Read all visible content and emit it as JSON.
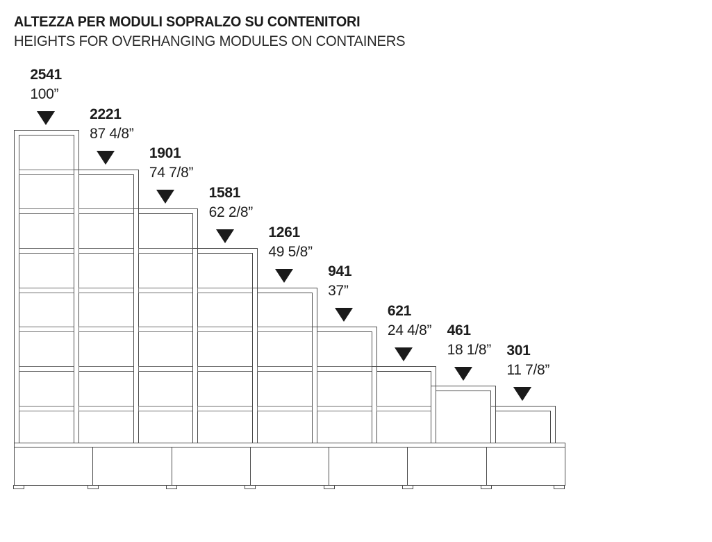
{
  "title": {
    "italian": "ALTEZZA PER MODULI SOPRALZO SU CONTENITORI",
    "english": "HEIGHTS FOR OVERHANGING MODULES ON CONTAINERS"
  },
  "diagram": {
    "description": "Stepped front elevation of nine overhanging shelving modules of decreasing height standing on a continuous row of base containers; each module is annotated with its height in millimetres and inches above a filled down-pointing triangle marker",
    "marker": "down-triangle-icon",
    "units": [
      {
        "height_mm": 2541,
        "label_mm": "2541",
        "label_in": "100”",
        "shelves_mm": [
          2221,
          1901,
          1581,
          1261,
          941,
          621,
          301
        ]
      },
      {
        "height_mm": 2221,
        "label_mm": "2221",
        "label_in": "87 4/8”",
        "shelves_mm": [
          1901,
          1581,
          1261,
          941,
          621,
          301
        ]
      },
      {
        "height_mm": 1901,
        "label_mm": "1901",
        "label_in": "74 7/8”",
        "shelves_mm": [
          1581,
          1261,
          941,
          621,
          301
        ]
      },
      {
        "height_mm": 1581,
        "label_mm": "1581",
        "label_in": "62 2/8”",
        "shelves_mm": [
          1261,
          941,
          621,
          301
        ]
      },
      {
        "height_mm": 1261,
        "label_mm": "1261",
        "label_in": "49 5/8”",
        "shelves_mm": [
          941,
          621,
          301
        ]
      },
      {
        "height_mm": 941,
        "label_mm": "941",
        "label_in": "37”",
        "shelves_mm": [
          621,
          301
        ]
      },
      {
        "height_mm": 621,
        "label_mm": "621",
        "label_in": "24 4/8”",
        "shelves_mm": [
          301
        ]
      },
      {
        "height_mm": 461,
        "label_mm": "461",
        "label_in": "18 1/8”",
        "shelves_mm": []
      },
      {
        "height_mm": 301,
        "label_mm": "301",
        "label_in": "11 7/8”",
        "shelves_mm": []
      }
    ],
    "base": {
      "compartment_count": 7,
      "feet_count": 8
    },
    "colors": {
      "line": "#4c4c4c",
      "line_soft": "#6e6e6e",
      "text": "#1c1c1c",
      "marker": "#1a1a1a",
      "background": "#ffffff"
    }
  }
}
